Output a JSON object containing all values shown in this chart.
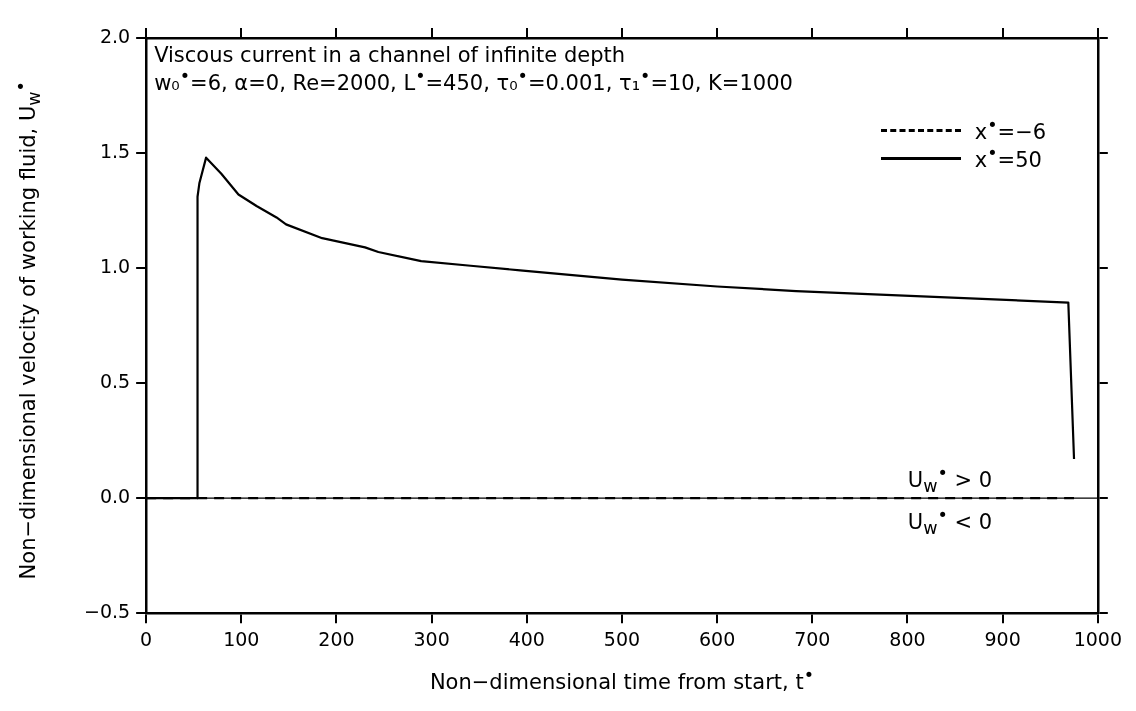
{
  "chart_data": {
    "type": "line",
    "title": "Viscous current in a channel of infinite depth",
    "subtitle": "w₀$^{•}$=6, α=0, Re=2000, L$^{•}$=450, τ₀$^{•}$=0.001, τ₁$^{•}$=10, K=1000",
    "xlabel": "Non−dimensional time from start, t$^{•}$",
    "ylabel": "Non−dimensional velocity of working fluid, U$_{w}$$^{•}$",
    "series": [
      {
        "name": "x$^{•}$=−6",
        "color": "#000000",
        "line_style": "dashed",
        "x": [
          0,
          975
        ],
        "values": [
          0,
          0
        ]
      },
      {
        "name": "x$^{•}$=50",
        "color": "#000000",
        "line_style": "solid",
        "x": [
          0,
          54,
          54,
          56,
          63,
          79,
          97,
          116,
          137,
          147,
          185,
          230,
          244,
          289,
          341,
          393,
          500,
          600,
          683,
          969,
          975
        ],
        "values": [
          0,
          0,
          1.31,
          1.37,
          1.48,
          1.41,
          1.32,
          1.27,
          1.22,
          1.19,
          1.13,
          1.09,
          1.07,
          1.03,
          1.01,
          0.99,
          0.95,
          0.92,
          0.9,
          0.85,
          0.17
        ]
      }
    ],
    "xlim": [
      0,
      1000
    ],
    "xticks": [
      0,
      100,
      200,
      300,
      400,
      500,
      600,
      700,
      800,
      900,
      1000
    ],
    "ylim": [
      -0.5,
      2.0
    ],
    "yticks": [
      {
        "value": -0.5,
        "label": "−0.5"
      },
      {
        "value": 0,
        "label": "0.0"
      },
      {
        "value": 0.5,
        "label": "0.5"
      },
      {
        "value": 1,
        "label": "1.0"
      },
      {
        "value": 1.5,
        "label": "1.5"
      },
      {
        "value": 2,
        "label": "2.0"
      }
    ],
    "ref_lines": [
      {
        "axis": "y",
        "value": 0,
        "color": "#000000"
      }
    ],
    "annotations": [
      "U$_{w}$$^{•}$ > 0",
      "U$_{w}$$^{•}$ < 0"
    ],
    "grid": false,
    "legend": "top right"
  }
}
